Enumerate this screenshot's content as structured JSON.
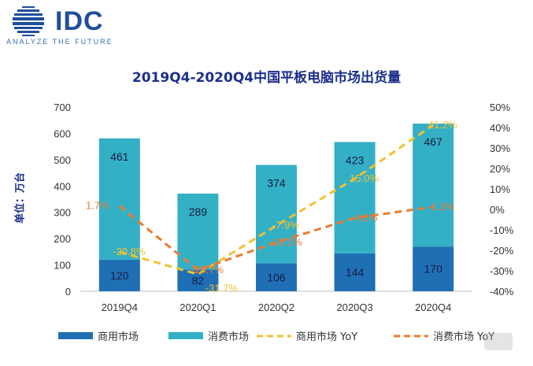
{
  "logo": {
    "brand": "IDC",
    "tagline": "ANALYZE THE FUTURE"
  },
  "chart_data": {
    "type": "bar",
    "title": "2019Q4-2020Q4中国平板电脑市场出货量",
    "ylabel": "单位：万台",
    "categories": [
      "2019Q4",
      "2020Q1",
      "2020Q2",
      "2020Q3",
      "2020Q4"
    ],
    "stacked": true,
    "ylim": [
      0,
      700
    ],
    "y_ticks": [
      0,
      100,
      200,
      300,
      400,
      500,
      600,
      700
    ],
    "y2lim": [
      -40,
      50
    ],
    "y2_ticks": [
      "-40%",
      "-30%",
      "-20%",
      "-10%",
      "0%",
      "10%",
      "20%",
      "30%",
      "40%",
      "50%"
    ],
    "grid": false,
    "legend_position": "bottom",
    "series": [
      {
        "name": "商用市场",
        "kind": "bar",
        "axis": "left",
        "color": "#1f6fb5",
        "values": [
          120,
          82,
          106,
          144,
          170
        ],
        "labels": [
          "120",
          "82",
          "106",
          "144",
          "170"
        ]
      },
      {
        "name": "消费市场",
        "kind": "bar",
        "axis": "left",
        "color": "#33b0c6",
        "values": [
          461,
          289,
          374,
          423,
          467
        ],
        "labels": [
          "461",
          "289",
          "374",
          "423",
          "467"
        ]
      },
      {
        "name": "商用市场 YoY",
        "kind": "line",
        "axis": "right",
        "color": "#f2c12e",
        "values": [
          -20.8,
          -31.7,
          -7.9,
          15.0,
          41.2
        ],
        "labels": [
          "-20.8%",
          "-31.7%",
          "-7.9%",
          "15.0%",
          "41.2%"
        ]
      },
      {
        "name": "消费市场 YoY",
        "kind": "line",
        "axis": "right",
        "color": "#ee7a2f",
        "values": [
          1.7,
          -29.7,
          -16.1,
          -4.2,
          1.2
        ],
        "labels": [
          "1.7%",
          "-29.7%",
          "-16.1%",
          "-4.2%",
          "1.2%"
        ]
      }
    ]
  }
}
